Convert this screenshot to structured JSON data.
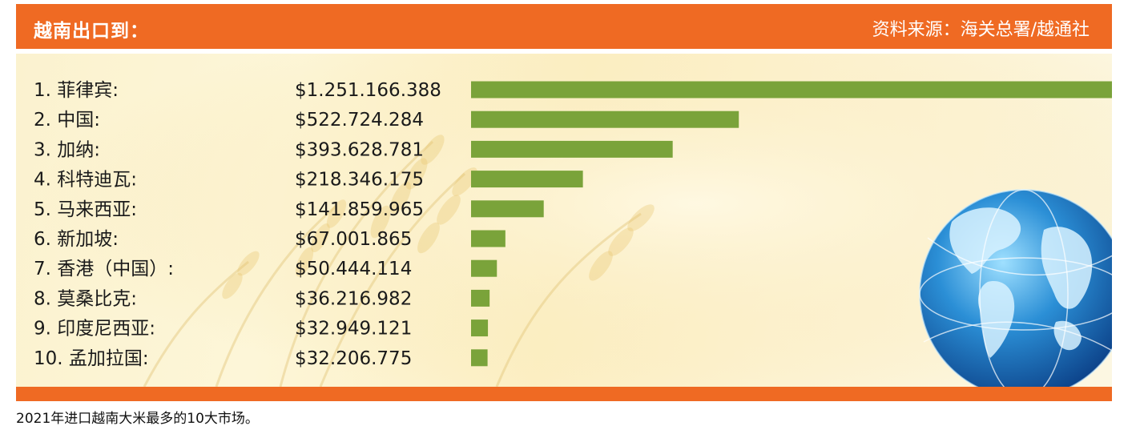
{
  "header": {
    "title": "越南出口到：",
    "source": "资料来源：海关总署/越通社"
  },
  "caption": "2021年进口越南大米最多的10大市场。",
  "colors": {
    "header": "#ef6a23",
    "bar": "#7aa33a",
    "background": "#fcf2cc"
  },
  "icons": [
    "rice-plant-background",
    "globe-icon"
  ],
  "chart_data": {
    "type": "bar",
    "orientation": "horizontal",
    "title": "越南出口到：",
    "categories": [
      "菲律宾",
      "中国",
      "加纳",
      "科特迪瓦",
      "马来西亚",
      "新加坡",
      "香港（中国）",
      "莫桑比克",
      "印度尼西亚",
      "孟加拉国"
    ],
    "labels": [
      "1.  菲律宾:",
      "2.  中国:",
      "3.  加纳:",
      "4.  科特迪瓦:",
      "5.  马来西亚:",
      "6.  新加坡:",
      "7.  香港（中国）:",
      "8.  莫桑比克:",
      "9.  印度尼西亚:",
      "10. 孟加拉国:"
    ],
    "value_labels": [
      "$1.251.166.388",
      "$522.724.284",
      "$393.628.781",
      "$218.346.175",
      "$141.859.965",
      "$67.001.865",
      "$50.444.114",
      "$36.216.982",
      "$32.949.121",
      "$32.206.775"
    ],
    "values": [
      1251166388,
      522724284,
      393628781,
      218346175,
      141859965,
      67001865,
      50444114,
      36216982,
      32949121,
      32206775
    ],
    "unit": "$",
    "grid": false,
    "legend": "none"
  }
}
